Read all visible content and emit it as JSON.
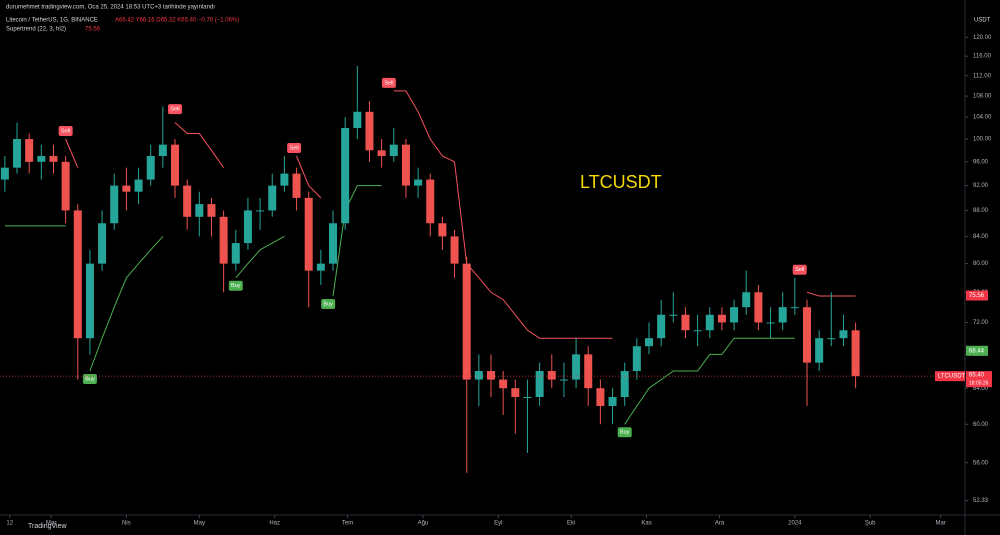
{
  "chart_data": {
    "type": "candlestick",
    "title": "LTCUSDT",
    "header": {
      "author_line": "durumehmet tradingview.com, Oca 25, 2024 18:53 UTC+3 tarihinde yayınlandı",
      "symbol_line": "Litecoin / TetherUS, 1G, BINANCE",
      "ohlc": "A66.42 Y66.16 D65.32 K65.40 −0.70 (−1.06%)",
      "indicator_line": "Supertrend (22, 3, hl2)",
      "indicator_value": "75.56"
    },
    "currency": "USDT",
    "logo": "TradingView",
    "last_time": "18:05:26",
    "xlim": [
      0,
      397
    ],
    "ylim": [
      51,
      126
    ],
    "log_scale": true,
    "xticks": [
      {
        "value": 4,
        "label": "12"
      },
      {
        "value": 21,
        "label": "Mar"
      },
      {
        "value": 52,
        "label": "Nis"
      },
      {
        "value": 82,
        "label": "May"
      },
      {
        "value": 113,
        "label": "Haz"
      },
      {
        "value": 143,
        "label": "Tem"
      },
      {
        "value": 174,
        "label": "Ağu"
      },
      {
        "value": 205,
        "label": "Eyl"
      },
      {
        "value": 235,
        "label": "Eki"
      },
      {
        "value": 266,
        "label": "Kas"
      },
      {
        "value": 296,
        "label": "Ara"
      },
      {
        "value": 327,
        "label": "2024"
      },
      {
        "value": 358,
        "label": "Şub"
      },
      {
        "value": 387,
        "label": "Mar"
      }
    ],
    "yticks": [
      {
        "value": 120,
        "label": "120.00"
      },
      {
        "value": 116,
        "label": "116.00"
      },
      {
        "value": 112,
        "label": "112.00"
      },
      {
        "value": 108,
        "label": "108.00"
      },
      {
        "value": 104,
        "label": "104.00"
      },
      {
        "value": 100,
        "label": "100.00"
      },
      {
        "value": 96,
        "label": "96.00"
      },
      {
        "value": 92,
        "label": "92.00"
      },
      {
        "value": 88,
        "label": "88.00"
      },
      {
        "value": 84,
        "label": "84.00"
      },
      {
        "value": 80,
        "label": "80.00"
      },
      {
        "value": 76,
        "label": "76.00"
      },
      {
        "value": 72,
        "label": "72.00"
      },
      {
        "value": 68,
        "label": "68.00"
      },
      {
        "value": 64,
        "label": "64.00"
      },
      {
        "value": 60,
        "label": "60.00"
      },
      {
        "value": 56,
        "label": "56.00"
      },
      {
        "value": 52.33,
        "label": "52.33"
      }
    ],
    "x": [
      2,
      7,
      12,
      17,
      22,
      27,
      32,
      37,
      42,
      47,
      52,
      57,
      62,
      67,
      72,
      77,
      82,
      87,
      92,
      97,
      102,
      107,
      112,
      117,
      122,
      127,
      132,
      137,
      142,
      147,
      152,
      157,
      162,
      167,
      172,
      177,
      182,
      187,
      192,
      197,
      202,
      207,
      212,
      217,
      222,
      227,
      232,
      237,
      242,
      247,
      252,
      257,
      262,
      267,
      272,
      277,
      282,
      287,
      292,
      297,
      302,
      307,
      312,
      317,
      322,
      327,
      332,
      337,
      342,
      347,
      352
    ],
    "series": [
      {
        "name": "LTCUSDT",
        "up_color": "#26a69a",
        "down_color": "#ef5350",
        "open": [
          93,
          95,
          100,
          96,
          97,
          96,
          88,
          70,
          80,
          86,
          92,
          91,
          93,
          97,
          99,
          92,
          87,
          89,
          87,
          80,
          83,
          88,
          88,
          92,
          94,
          90,
          79,
          80,
          86,
          102,
          105,
          98,
          97,
          99,
          92,
          93,
          86,
          84,
          80,
          65,
          66,
          65,
          64,
          63,
          63,
          66,
          65,
          65,
          68,
          64,
          62,
          63,
          66,
          69,
          70,
          73,
          73,
          71,
          71,
          73,
          72,
          74,
          76,
          72,
          72,
          74,
          74,
          67,
          70,
          70,
          71
        ],
        "high": [
          97,
          103,
          101,
          99,
          99,
          97,
          89,
          82,
          88,
          94,
          95,
          95,
          99,
          106,
          100,
          93,
          91,
          90,
          88,
          85,
          90,
          90,
          94,
          97,
          95,
          91,
          82,
          88,
          104,
          114,
          107,
          100,
          102,
          100,
          95,
          94,
          87,
          85,
          81,
          68,
          68,
          66,
          65,
          65,
          67,
          68,
          67,
          70,
          69,
          65,
          64,
          67,
          70,
          72,
          75,
          76,
          74,
          73,
          74,
          74,
          75,
          79,
          77,
          74,
          76,
          78,
          75,
          71,
          76,
          73,
          72
        ],
        "low": [
          91,
          94,
          94,
          93,
          94,
          86,
          65,
          68,
          79,
          85,
          88,
          89,
          92,
          95,
          90,
          85,
          84,
          84,
          76,
          79,
          82,
          85,
          87,
          91,
          88,
          74,
          77,
          79,
          85,
          100,
          96,
          95,
          96,
          90,
          90,
          84,
          82,
          78,
          55,
          62,
          63,
          61,
          59,
          57,
          62,
          64,
          63,
          64,
          62,
          60,
          60,
          62,
          65,
          68,
          69,
          72,
          70,
          69,
          70,
          71,
          71,
          73,
          71,
          70,
          71,
          73,
          62,
          66,
          69,
          69,
          64
        ],
        "close": [
          95,
          100,
          96,
          97,
          96,
          88,
          70,
          80,
          86,
          92,
          91,
          93,
          97,
          99,
          92,
          87,
          89,
          87,
          80,
          83,
          88,
          88,
          92,
          94,
          90,
          79,
          80,
          86,
          102,
          105,
          98,
          97,
          99,
          92,
          93,
          86,
          84,
          80,
          65,
          66,
          65,
          64,
          63,
          63,
          66,
          65,
          65,
          68,
          64,
          62,
          63,
          66,
          69,
          70,
          73,
          73,
          71,
          71,
          73,
          72,
          74,
          76,
          72,
          72,
          74,
          74,
          67,
          70,
          70,
          71,
          65.4
        ]
      }
    ],
    "supertrend": {
      "up_color": "#4caf50",
      "down_color": "#f7525f",
      "up": [
        85.6,
        85.6,
        85.6,
        85.6,
        85.6,
        85.6,
        null,
        66,
        70,
        74,
        78,
        80,
        82,
        84,
        null,
        null,
        null,
        null,
        null,
        78,
        80,
        82,
        83,
        84,
        null,
        null,
        null,
        75.5,
        88,
        92,
        92,
        92,
        null,
        null,
        null,
        null,
        null,
        null,
        null,
        null,
        null,
        null,
        null,
        null,
        null,
        null,
        null,
        null,
        null,
        null,
        null,
        60,
        62,
        64,
        65,
        66,
        66,
        66,
        68,
        68,
        70,
        70,
        70,
        70,
        70,
        70,
        null,
        null,
        null,
        null,
        null
      ],
      "down": [
        null,
        null,
        null,
        null,
        null,
        100,
        95,
        null,
        null,
        null,
        null,
        null,
        null,
        null,
        103,
        101,
        101,
        98,
        95,
        null,
        null,
        null,
        null,
        null,
        97,
        92,
        90,
        null,
        null,
        null,
        null,
        null,
        109,
        109,
        105,
        100,
        97,
        96,
        80,
        78,
        76,
        75,
        73,
        71,
        70,
        70,
        70,
        70,
        70,
        70,
        70,
        null,
        null,
        null,
        null,
        null,
        null,
        null,
        null,
        null,
        null,
        null,
        null,
        null,
        null,
        null,
        76,
        75.5,
        75.5,
        75.5,
        75.5
      ]
    },
    "signals": [
      {
        "label": "Sell",
        "x": 27,
        "y": 100,
        "color": "#f7525f"
      },
      {
        "label": "Buy",
        "x": 37,
        "y": 66,
        "color": "#4caf50"
      },
      {
        "label": "Sell",
        "x": 72,
        "y": 104,
        "color": "#f7525f"
      },
      {
        "label": "Buy",
        "x": 97,
        "y": 78,
        "color": "#4caf50"
      },
      {
        "label": "Sell",
        "x": 121,
        "y": 97,
        "color": "#f7525f"
      },
      {
        "label": "Buy",
        "x": 135,
        "y": 75.5,
        "color": "#4caf50"
      },
      {
        "label": "Sell",
        "x": 160,
        "y": 109,
        "color": "#f7525f"
      },
      {
        "label": "Buy",
        "x": 257,
        "y": 60,
        "color": "#4caf50"
      },
      {
        "label": "Sell",
        "x": 329,
        "y": 78,
        "color": "#f7525f"
      }
    ],
    "price_labels": [
      {
        "value": 75.56,
        "label": "75.56",
        "color": "#f23645"
      },
      {
        "value": 68.44,
        "label": "68.44",
        "color": "#4caf50"
      },
      {
        "value": 65.4,
        "label": "65.40",
        "color": "#f23645"
      }
    ]
  }
}
